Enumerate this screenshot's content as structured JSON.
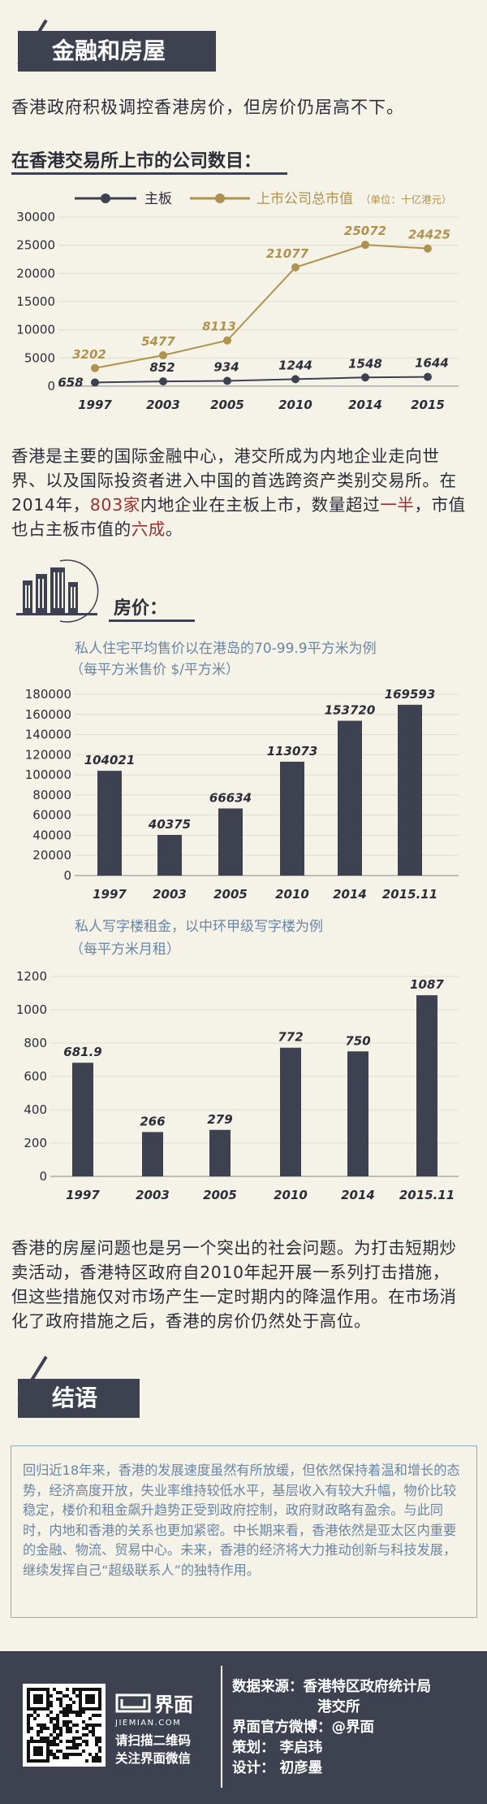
{
  "sections": {
    "finance_title": "金融和房屋",
    "finance_lead": "香港政府积极调控香港房价，但房价仍居高不下。",
    "listed_heading": "在香港交易所上市的公司数目：",
    "finance_para": {
      "p1": "香港是主要的国际金融中心，港交所成为内地企业走向世界、以及国际投资者进入中国的首选跨资产类别交易所。在2014年，",
      "h1": "803家",
      "p2": "内地企业在主板上市，数量超过",
      "h2": "一半",
      "p3": "，市值也占主板市值的",
      "h3": "六成",
      "p4": "。"
    },
    "housing_heading": "房价：",
    "housing_para": "香港的房屋问题也是另一个突出的社会问题。为打击短期炒卖活动，香港特区政府自2010年起开展一系列打击措施，但这些措施仅对市场产生一定时期内的降温作用。在市场消化了政府措施之后，香港的房价仍然处于高位。",
    "conclusion_title": "结语",
    "conclusion_text": "回归近18年来，香港的发展速度虽然有所放缓，但依然保持着温和增长的态势，经济高度开放，失业率维持较低水平，基层收入有较大升幅，物价比较稳定，楼价和租金飙升趋势正受到政府控制，政府财政略有盈余。与此同时，内地和香港的关系也更加紧密。中长期来看，香港依然是亚太区内重要的金融、物流、贸易中心。未来，香港的经济将大力推动创新与科技发展，继续发挥自己“超级联系人”的独特作用。"
  },
  "chart_data": [
    {
      "type": "line",
      "x": [
        "1997",
        "2003",
        "2005",
        "2010",
        "2014",
        "2015"
      ],
      "series": [
        {
          "name": "主板",
          "values": [
            658,
            852,
            934,
            1244,
            1548,
            1644
          ],
          "color": "#3d4150"
        },
        {
          "name": "上市公司总市值",
          "unit_note": "（单位：十亿港元）",
          "values": [
            3202,
            5477,
            8113,
            21077,
            25072,
            24425
          ],
          "color": "#b0924f"
        }
      ],
      "yticks": [
        "0",
        "5000",
        "10000",
        "15000",
        "20000",
        "25000",
        "30000"
      ],
      "ylim": [
        0,
        30000
      ]
    },
    {
      "type": "bar",
      "title": "私人住宅平均售价以在港岛的70-99.9平方米为例",
      "subtitle": "（每平方米售价 $/平方米）",
      "categories": [
        "1997",
        "2003",
        "2005",
        "2010",
        "2014",
        "2015.11"
      ],
      "values": [
        104021,
        40375,
        66634,
        113073,
        153720,
        169593
      ],
      "yticks": [
        "0",
        "20000",
        "40000",
        "60000",
        "80000",
        "100000",
        "120000",
        "140000",
        "160000",
        "180000"
      ],
      "ylim": [
        0,
        180000
      ],
      "color": "#3d4150"
    },
    {
      "type": "bar",
      "title": "私人写字楼租金，以中环甲级写字楼为例",
      "subtitle": "（每平方米月租）",
      "categories": [
        "1997",
        "2003",
        "2005",
        "2010",
        "2014",
        "2015.11"
      ],
      "values": [
        681.9,
        266,
        279,
        772,
        750,
        1087
      ],
      "yticks": [
        "0",
        "200",
        "400",
        "600",
        "800",
        "1000",
        "1200"
      ],
      "ylim": [
        0,
        1200
      ],
      "color": "#3d4150"
    }
  ],
  "footer": {
    "logo_text": "界面",
    "logo_sub": "JIEMIAN.COM",
    "scan_line1": "请扫描二维码",
    "scan_line2": "关注界面微信",
    "source_label": "数据来源：",
    "source_value1": "香港特区政府统计局",
    "source_value2": "港交所",
    "weibo": "界面官方微博：@界面",
    "planner": "策划：  李启玮",
    "designer": "设计：  初彦墨"
  }
}
